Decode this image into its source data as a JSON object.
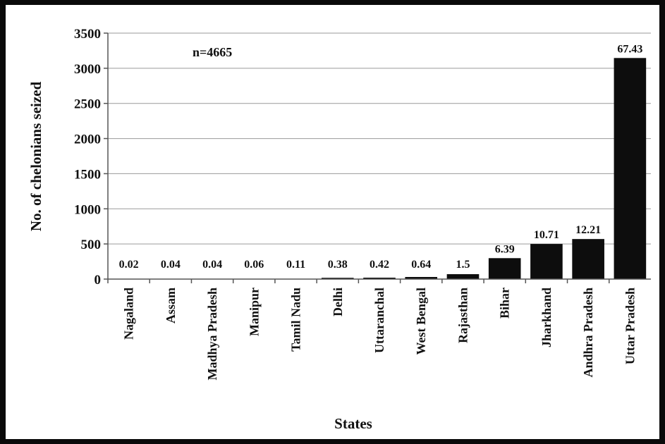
{
  "chart_data": {
    "type": "bar",
    "title": "",
    "xlabel": "States",
    "ylabel": "No. of chelonians seized",
    "annotation": "n=4665",
    "ylim": [
      0,
      3500
    ],
    "yticks": [
      0,
      500,
      1000,
      1500,
      2000,
      2500,
      3000,
      3500
    ],
    "grid": true,
    "bar_color": "#0d0d0d",
    "categories": [
      "Nagaland",
      "Assam",
      "Madhya Pradesh",
      "Manipur",
      "Tamil Nadu",
      "Delhi",
      "Uttaranchal",
      "West Bengal",
      "Rajasthan",
      "Bihar",
      "Jharkhand",
      "Andhra Pradesh",
      "Uttar Pradesh"
    ],
    "values": [
      1,
      2,
      2,
      3,
      5,
      18,
      20,
      30,
      70,
      298,
      500,
      570,
      3146
    ],
    "data_labels": [
      "0.02",
      "0.04",
      "0.04",
      "0.06",
      "0.11",
      "0.38",
      "0.42",
      "0.64",
      "1.5",
      "6.39",
      "10.71",
      "12.21",
      "67.43"
    ]
  }
}
